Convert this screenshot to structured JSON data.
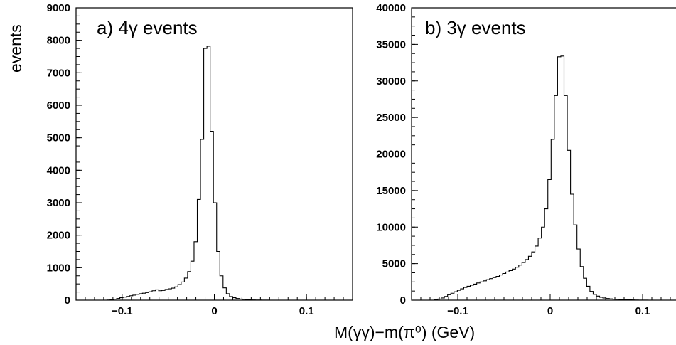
{
  "figure": {
    "ylabel": "events",
    "xlabel": "M(γγ)−m(π⁰)   (GeV)"
  },
  "chart_data": [
    {
      "type": "histogram",
      "title": "a) 4γ events",
      "xlim": [
        -0.15,
        0.15
      ],
      "ylim": [
        0,
        9000
      ],
      "xticks": [
        -0.1,
        0,
        0.1
      ],
      "xtick_labels": [
        "−0.1",
        "0",
        "0.1"
      ],
      "yticks": [
        0,
        1000,
        2000,
        3000,
        4000,
        5000,
        6000,
        7000,
        8000,
        9000
      ],
      "ytick_labels": [
        "0",
        "1000",
        "2000",
        "3000",
        "4000",
        "5000",
        "6000",
        "7000",
        "8000",
        "9000"
      ],
      "grid": false,
      "bin_start": -0.12,
      "bin_width": 0.0035,
      "counts": [
        0,
        5,
        15,
        30,
        50,
        75,
        95,
        115,
        135,
        155,
        180,
        200,
        215,
        235,
        260,
        290,
        320,
        290,
        300,
        330,
        350,
        370,
        410,
        480,
        560,
        680,
        880,
        1200,
        1800,
        3100,
        4950,
        7750,
        7820,
        5200,
        3000,
        1500,
        750,
        380,
        200,
        110,
        75,
        50,
        35,
        25,
        18,
        12,
        8,
        5,
        3,
        2,
        1
      ]
    },
    {
      "type": "histogram",
      "title": "b) 3γ events",
      "xlim": [
        -0.15,
        0.15
      ],
      "ylim": [
        0,
        40000
      ],
      "xticks": [
        -0.1,
        0,
        0.1
      ],
      "xtick_labels": [
        "−0.1",
        "0",
        "0.1"
      ],
      "yticks": [
        0,
        5000,
        10000,
        15000,
        20000,
        25000,
        30000,
        35000,
        40000
      ],
      "ytick_labels": [
        "0",
        "5000",
        "10000",
        "15000",
        "20000",
        "25000",
        "30000",
        "35000",
        "40000"
      ],
      "grid": false,
      "bin_start": -0.125,
      "bin_width": 0.0035,
      "counts": [
        50,
        150,
        300,
        500,
        750,
        950,
        1150,
        1350,
        1550,
        1750,
        1900,
        2050,
        2200,
        2350,
        2500,
        2650,
        2800,
        2950,
        3100,
        3250,
        3450,
        3650,
        3850,
        4050,
        4250,
        4500,
        4800,
        5150,
        5550,
        6000,
        6600,
        7400,
        8500,
        10000,
        12500,
        16500,
        22000,
        28000,
        33300,
        33400,
        28000,
        20500,
        14500,
        10300,
        7000,
        4600,
        3000,
        1900,
        1200,
        800,
        550,
        400,
        300,
        230,
        180,
        140,
        110,
        90,
        70,
        55,
        40,
        30,
        20,
        12,
        6,
        3
      ]
    }
  ]
}
